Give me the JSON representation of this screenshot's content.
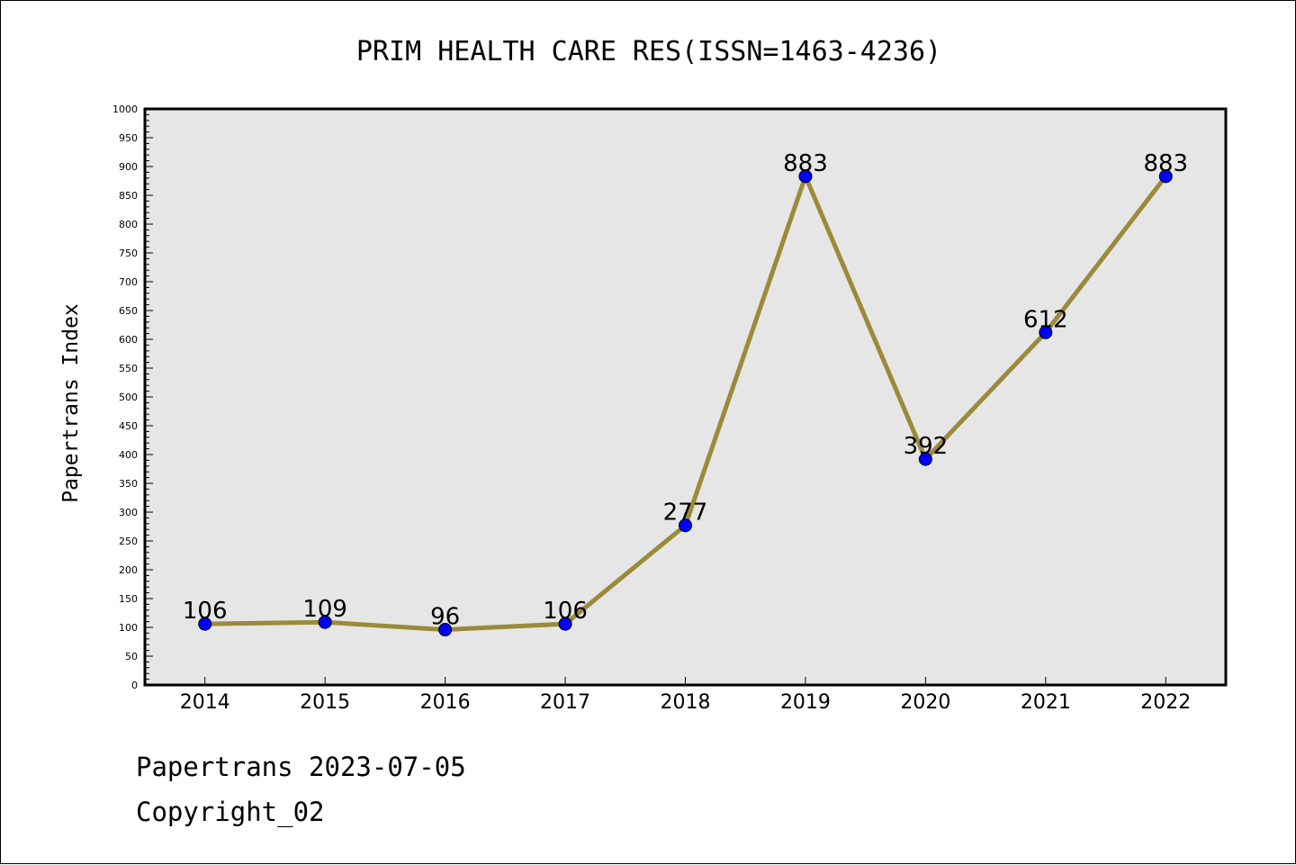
{
  "chart_data": {
    "type": "line",
    "title": "PRIM HEALTH CARE RES(ISSN=1463-4236)",
    "ylabel": "Papertrans Index",
    "xlabel": "",
    "categories": [
      "2014",
      "2015",
      "2016",
      "2017",
      "2018",
      "2019",
      "2020",
      "2021",
      "2022"
    ],
    "series": [
      {
        "values": [
          106,
          109,
          96,
          106,
          277,
          883,
          392,
          612,
          883
        ]
      }
    ],
    "ylim": [
      0,
      1000
    ],
    "ytick_step": 50,
    "grid": false,
    "plot_background": "#e6e6e6",
    "line_color": "#9b8a3a",
    "marker_color": "#0000ff"
  },
  "footer": {
    "line1": "Papertrans 2023-07-05",
    "line2": "Copyright_02"
  }
}
